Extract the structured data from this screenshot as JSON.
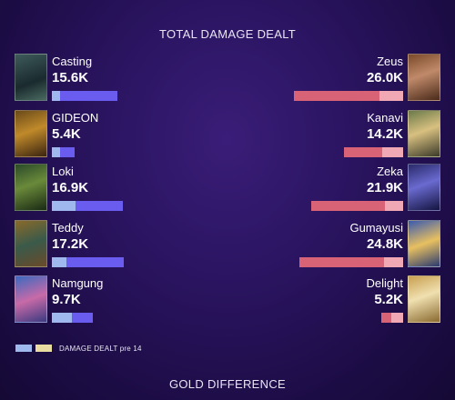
{
  "header": {
    "title": "TOTAL DAMAGE DEALT"
  },
  "footer": {
    "title": "GOLD DIFFERENCE"
  },
  "legend": {
    "label": "DAMAGE DEALT pre 14",
    "swatch_colors": [
      "#9fb8ee",
      "#e8dca0"
    ]
  },
  "colors": {
    "blue_pre": "#9fb8ee",
    "blue_post": "#6b5cf0",
    "red_pre": "#f0a8b4",
    "red_post": "#d86276"
  },
  "blue_team": [
    {
      "name": "Casting",
      "damage": "15.6K",
      "damage_value": 15.6,
      "pre14_fraction": 0.12,
      "portrait_icon": "champion-portrait-icon"
    },
    {
      "name": "GIDEON",
      "damage": "5.4K",
      "damage_value": 5.4,
      "pre14_fraction": 0.35,
      "portrait_icon": "champion-portrait-icon"
    },
    {
      "name": "Loki",
      "damage": "16.9K",
      "damage_value": 16.9,
      "pre14_fraction": 0.33,
      "portrait_icon": "champion-portrait-icon"
    },
    {
      "name": "Teddy",
      "damage": "17.2K",
      "damage_value": 17.2,
      "pre14_fraction": 0.2,
      "portrait_icon": "champion-portrait-icon"
    },
    {
      "name": "Namgung",
      "damage": "9.7K",
      "damage_value": 9.7,
      "pre14_fraction": 0.5,
      "portrait_icon": "champion-portrait-icon"
    }
  ],
  "red_team": [
    {
      "name": "Zeus",
      "damage": "26.0K",
      "damage_value": 26.0,
      "pre14_fraction": 0.22,
      "portrait_icon": "champion-portrait-icon"
    },
    {
      "name": "Kanavi",
      "damage": "14.2K",
      "damage_value": 14.2,
      "pre14_fraction": 0.35,
      "portrait_icon": "champion-portrait-icon"
    },
    {
      "name": "Zeka",
      "damage": "21.9K",
      "damage_value": 21.9,
      "pre14_fraction": 0.2,
      "portrait_icon": "champion-portrait-icon"
    },
    {
      "name": "Gumayusi",
      "damage": "24.8K",
      "damage_value": 24.8,
      "pre14_fraction": 0.18,
      "portrait_icon": "champion-portrait-icon"
    },
    {
      "name": "Delight",
      "damage": "5.2K",
      "damage_value": 5.2,
      "pre14_fraction": 0.55,
      "portrait_icon": "champion-portrait-icon"
    }
  ]
}
